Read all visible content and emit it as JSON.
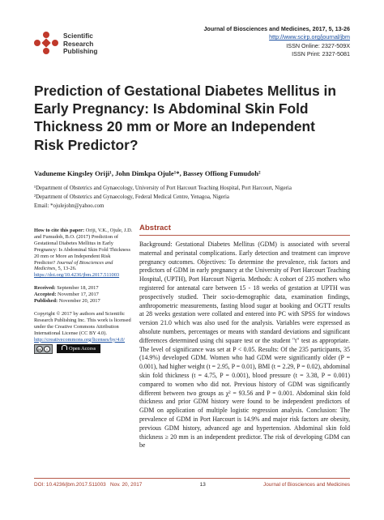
{
  "publisher": {
    "logo_line1": "Scientific",
    "logo_line2": "Research",
    "logo_line3": "Publishing",
    "logo_color": "#c0392b"
  },
  "journal": {
    "citation": "Journal of Biosciences and Medicines, 2017, 5, 13-26",
    "url": "http://www.scirp.org/journal/jbm",
    "issn_online": "ISSN Online: 2327-509X",
    "issn_print": "ISSN Print: 2327-5081"
  },
  "paper": {
    "title_line1": "Prediction of Gestational Diabetes Mellitus in",
    "title_line2": "Early Pregnancy: Is Abdominal Skin Fold",
    "title_line3": "Thickness 20 mm or More an Independent",
    "title_line4": "Risk Predictor?",
    "authors": "Vaduneme Kingsley Oriji¹, John Dimkpa Ojule¹*, Bassey Offiong Fumudoh²",
    "affiliation1": "¹Department of Obstetrics and Gynaecology, University of Port Harcourt Teaching Hospital, Port Harcourt, Nigeria",
    "affiliation2": "²Department of Obstetrics and Gynaecology, Federal Medical Centre, Yenagoa, Nigeria",
    "email": "Email: *ojulejohn@yahoo.com"
  },
  "sidebar": {
    "cite_label": "How to cite this paper:",
    "cite_text": "Oriji, V.K., Ojule, J.D. and Fumudoh, B.O. (2017) Prediction of Gestational Diabetes Mellitus in Early Pregnancy: Is Abdominal Skin Fold Thickness 20 mm or More an Independent Risk Predictor?",
    "cite_journal": "Journal of Biosciences and Medicines",
    "cite_tail": ", 5, 13-26.",
    "cite_doi": "https://doi.org/10.4236/jbm.2017.511003",
    "received_label": "Received:",
    "received": "September 18, 2017",
    "accepted_label": "Accepted:",
    "accepted": "November 17, 2017",
    "published_label": "Published:",
    "published": "November 20, 2017",
    "copyright": "Copyright © 2017 by authors and Scientific Research Publishing Inc. This work is licensed under the Creative Commons Attribution International License (CC BY 4.0).",
    "license_url": "http://creativecommons.org/licenses/by/4.0/",
    "open_access": "Open Access"
  },
  "abstract": {
    "heading": "Abstract",
    "text": "Background: Gestational Diabetes Mellitus (GDM) is associated with several maternal and perinatal complications. Early detection and treatment can improve pregnancy outcomes. Objectives: To determine the prevalence, risk factors and predictors of GDM in early pregnancy at the University of Port Harcourt Teaching Hospital, (UPTH), Port Harcourt Nigeria. Methods: A cohort of 235 mothers who registered for antenatal care between 15 - 18 weeks of gestation at UPTH was prospectively studied. Their socio-demographic data, examination findings, anthropometric measurements, fasting blood sugar at booking and OGTT results at 28 weeks gestation were collated and entered into PC with SPSS for windows version 21.0 which was also used for the analysis. Variables were expressed as absolute numbers, percentages or means with standard deviations and significant differences determined using chi square test or the student \"t\" test as appropriate. The level of significance was set at P < 0.05. Results: Of the 235 participants, 35 (14.9%) developed GDM. Women who had GDM were significantly older (P = 0.001), had higher weight (t = 2.95, P = 0.01), BMI (t = 2.29, P = 0.02), abdominal skin fold thickness (t = 4.75, P = 0.001), blood pressure (t = 3.38, P = 0.001) compared to women who did not. Previous history of GDM was significantly different between two groups as χ² = 93.56 and P = 0.001. Abdominal skin fold thickness and prior GDM history were found to be independent predictors of GDM on application of multiple logistic regression analysis. Conclusion: The prevalence of GDM in Port Harcourt is 14.9% and major risk factors are obesity, previous GDM history, advanced age and hypertension. Abdominal skin fold thickness ≥ 20 mm is an independent predictor. The risk of developing GDM can be"
  },
  "footer": {
    "doi": "DOI: 10.4236/jbm.2017.511003",
    "date": "Nov. 20, 2017",
    "page": "13",
    "journal": "Journal of Biosciences and Medicines"
  }
}
